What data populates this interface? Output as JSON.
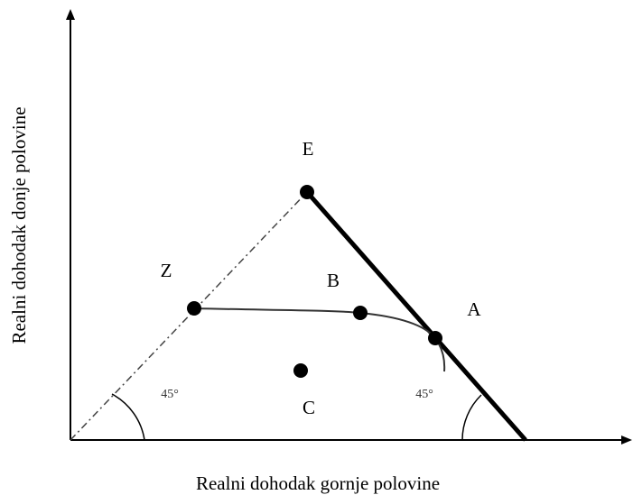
{
  "axes": {
    "x_label": "Realni dohodak gornje polovine",
    "y_label": "Realni dohodak donje polovine"
  },
  "points": [
    {
      "label": "E"
    },
    {
      "label": "Z"
    },
    {
      "label": "B"
    },
    {
      "label": "A"
    },
    {
      "label": "C"
    }
  ],
  "angles": [
    {
      "label": "45°"
    },
    {
      "label": "45°"
    }
  ]
}
